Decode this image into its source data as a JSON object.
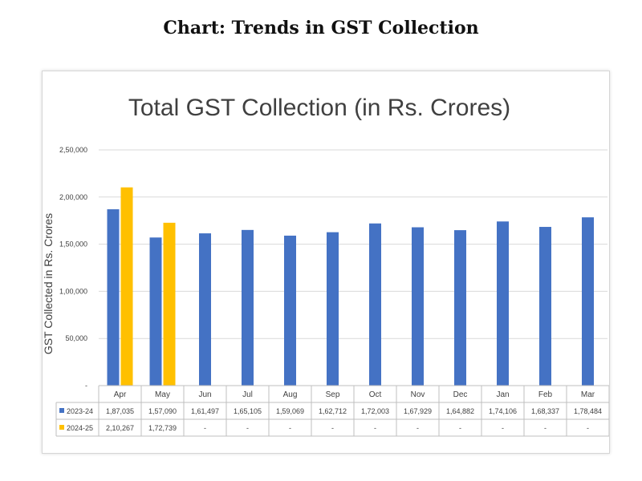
{
  "page_title": "Chart: Trends in GST Collection",
  "colors": {
    "series1": "#4472c4",
    "series2": "#ffc000",
    "grid": "#d9d9d9",
    "text": "#404040"
  },
  "chart_data": {
    "type": "bar",
    "title": "Total GST Collection (in Rs. Crores)",
    "xlabel": "",
    "ylabel": "GST Collected in Rs. Crores",
    "ylim": [
      0,
      250000
    ],
    "y_ticks": [
      0,
      50000,
      100000,
      150000,
      200000,
      250000
    ],
    "y_tick_labels": [
      "-",
      "50,000",
      "1,00,000",
      "1,50,000",
      "2,00,000",
      "2,50,000"
    ],
    "grid": true,
    "categories": [
      "Apr",
      "May",
      "Jun",
      "Jul",
      "Aug",
      "Sep",
      "Oct",
      "Nov",
      "Dec",
      "Jan",
      "Feb",
      "Mar"
    ],
    "series": [
      {
        "name": "2023-24",
        "values": [
          187035,
          157090,
          161497,
          165105,
          159069,
          162712,
          172003,
          167929,
          164882,
          174106,
          168337,
          178484
        ],
        "labels": [
          "1,87,035",
          "1,57,090",
          "1,61,497",
          "1,65,105",
          "1,59,069",
          "1,62,712",
          "1,72,003",
          "1,67,929",
          "1,64,882",
          "1,74,106",
          "1,68,337",
          "1,78,484"
        ]
      },
      {
        "name": "2024-25",
        "values": [
          210267,
          172739,
          null,
          null,
          null,
          null,
          null,
          null,
          null,
          null,
          null,
          null
        ],
        "labels": [
          "2,10,267",
          "1,72,739",
          "-",
          "-",
          "-",
          "-",
          "-",
          "-",
          "-",
          "-",
          "-",
          "-"
        ]
      }
    ]
  }
}
